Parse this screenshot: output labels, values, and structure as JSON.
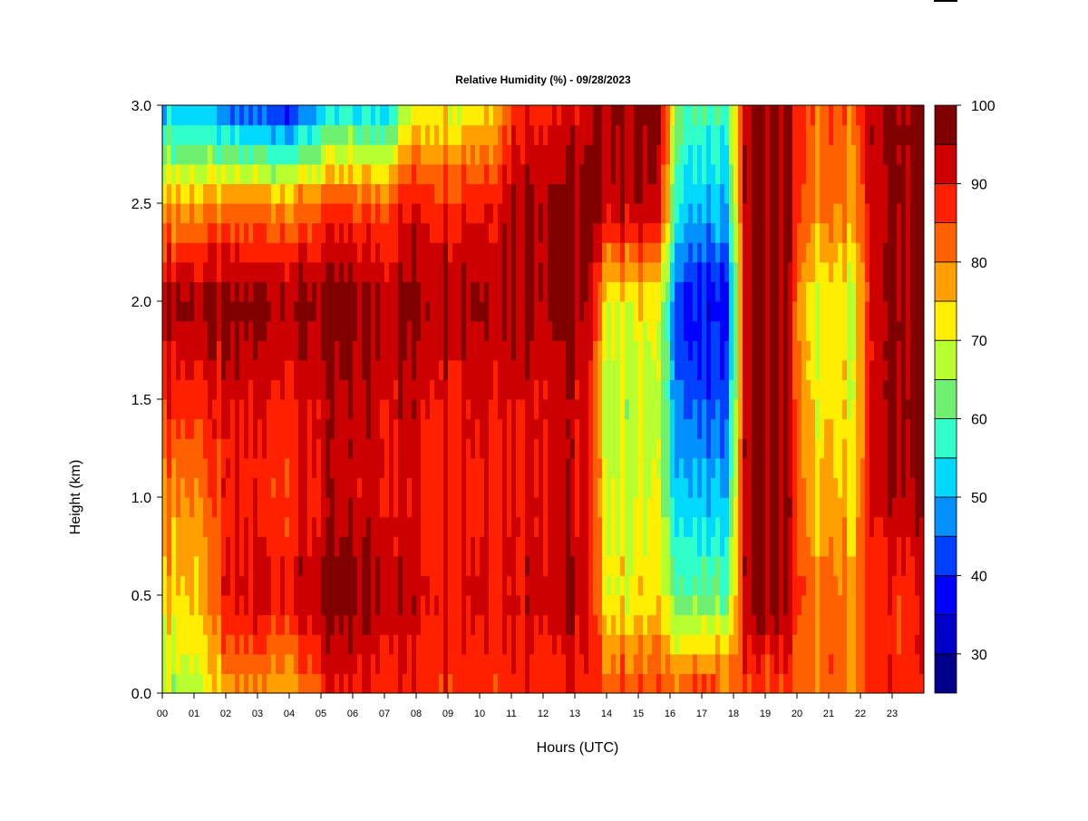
{
  "chart_data": {
    "type": "heatmap",
    "title": "Relative Humidity (%) - 09/28/2023",
    "xlabel": "Hours (UTC)",
    "ylabel": "Height (km)",
    "x_ticks": [
      "00",
      "01",
      "02",
      "03",
      "04",
      "05",
      "06",
      "07",
      "08",
      "09",
      "10",
      "11",
      "12",
      "13",
      "14",
      "15",
      "16",
      "17",
      "18",
      "19",
      "20",
      "21",
      "22",
      "23"
    ],
    "xlim": [
      0,
      24
    ],
    "y_ticks": [
      "0.0",
      "0.5",
      "1.0",
      "1.5",
      "2.0",
      "2.5",
      "3.0"
    ],
    "ylim": [
      0,
      3
    ],
    "colorbar": {
      "ticks": [
        "30",
        "40",
        "50",
        "60",
        "70",
        "80",
        "90",
        "100"
      ],
      "range": [
        25,
        100
      ],
      "levels": [
        25,
        30,
        35,
        40,
        45,
        50,
        55,
        60,
        65,
        70,
        75,
        80,
        85,
        90,
        95,
        100
      ],
      "colors": [
        "#00008b",
        "#0000c8",
        "#0000ff",
        "#0040ff",
        "#0090ff",
        "#00d8ff",
        "#30ffcc",
        "#70f070",
        "#b8ff30",
        "#ffee00",
        "#ffa000",
        "#ff6000",
        "#ff2000",
        "#cc0000",
        "#800000"
      ]
    },
    "z_description_units": "percent",
    "z_samples": [
      {
        "hour": 0.0,
        "heights_km": [
          0.0,
          0.5,
          1.0,
          1.5,
          2.0,
          2.5,
          3.0
        ],
        "rh": [
          68,
          75,
          80,
          88,
          97,
          78,
          50
        ]
      },
      {
        "hour": 3.5,
        "heights_km": [
          0.0,
          0.5,
          1.0,
          1.5,
          2.0,
          2.5,
          3.0
        ],
        "rh": [
          78,
          92,
          88,
          90,
          97,
          80,
          40
        ]
      },
      {
        "hour": 6.0,
        "heights_km": [
          0.0,
          0.5,
          1.0,
          1.5,
          2.0,
          2.5,
          3.0
        ],
        "rh": [
          88,
          97,
          92,
          93,
          97,
          84,
          52
        ]
      },
      {
        "hour": 9.0,
        "heights_km": [
          0.0,
          0.5,
          1.0,
          1.5,
          2.0,
          2.5,
          3.0
        ],
        "rh": [
          88,
          92,
          90,
          92,
          97,
          90,
          72
        ]
      },
      {
        "hour": 12.5,
        "heights_km": [
          0.0,
          0.5,
          1.0,
          1.5,
          2.0,
          2.5,
          3.0
        ],
        "rh": [
          88,
          94,
          92,
          93,
          97,
          97,
          90
        ]
      },
      {
        "hour": 14.8,
        "heights_km": [
          0.0,
          0.5,
          1.0,
          1.5,
          2.0,
          2.5,
          3.0
        ],
        "rh": [
          85,
          72,
          70,
          68,
          72,
          95,
          97
        ]
      },
      {
        "hour": 17.2,
        "heights_km": [
          0.0,
          0.5,
          1.0,
          1.5,
          2.0,
          2.5,
          3.0
        ],
        "rh": [
          85,
          60,
          50,
          42,
          36,
          50,
          58
        ]
      },
      {
        "hour": 19.0,
        "heights_km": [
          0.0,
          0.5,
          1.0,
          1.5,
          2.0,
          2.5,
          3.0
        ],
        "rh": [
          85,
          97,
          97,
          97,
          97,
          97,
          97
        ]
      },
      {
        "hour": 21.0,
        "heights_km": [
          0.0,
          0.5,
          1.0,
          1.5,
          2.0,
          2.5,
          3.0
        ],
        "rh": [
          82,
          80,
          75,
          72,
          70,
          80,
          82
        ]
      },
      {
        "hour": 23.5,
        "heights_km": [
          0.0,
          0.5,
          1.0,
          1.5,
          2.0,
          2.5,
          3.0
        ],
        "rh": [
          88,
          88,
          95,
          97,
          97,
          97,
          97
        ]
      }
    ]
  }
}
